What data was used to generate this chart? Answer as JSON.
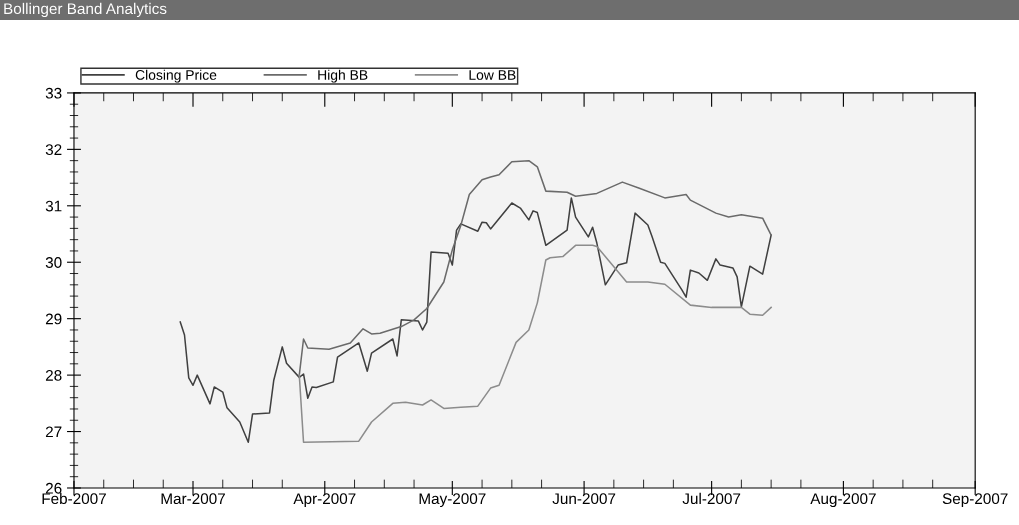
{
  "chart_data": {
    "type": "line",
    "title": "Bollinger Band Analytics",
    "xlim": [
      "2007-02-01",
      "2007-09-01"
    ],
    "xticks": [
      {
        "value": "2007-02-01",
        "label": "Feb-2007"
      },
      {
        "value": "2007-03-01",
        "label": "Mar-2007"
      },
      {
        "value": "2007-04-01",
        "label": "Apr-2007"
      },
      {
        "value": "2007-05-01",
        "label": "May-2007"
      },
      {
        "value": "2007-06-01",
        "label": "Jun-2007"
      },
      {
        "value": "2007-07-01",
        "label": "Jul-2007"
      },
      {
        "value": "2007-08-01",
        "label": "Aug-2007"
      },
      {
        "value": "2007-09-01",
        "label": "Sep-2007"
      }
    ],
    "ylim": [
      26,
      33
    ],
    "yticks": [
      26,
      27,
      28,
      29,
      30,
      31,
      32,
      33
    ],
    "grid": false,
    "legend": "top",
    "marker": "none",
    "line_style": "solid",
    "series": [
      {
        "name": "Closing Price",
        "color": "#404040",
        "x": [
          "2007-02-26",
          "2007-02-27",
          "2007-02-28",
          "2007-03-01",
          "2007-03-02",
          "2007-03-05",
          "2007-03-06",
          "2007-03-08",
          "2007-03-09",
          "2007-03-12",
          "2007-03-14",
          "2007-03-15",
          "2007-03-19",
          "2007-03-20",
          "2007-03-22",
          "2007-03-23",
          "2007-03-26",
          "2007-03-27",
          "2007-03-28",
          "2007-03-29",
          "2007-03-30",
          "2007-04-03",
          "2007-04-04",
          "2007-04-09",
          "2007-04-11",
          "2007-04-12",
          "2007-04-17",
          "2007-04-18",
          "2007-04-19",
          "2007-04-23",
          "2007-04-24",
          "2007-04-25",
          "2007-04-26",
          "2007-04-30",
          "2007-05-01",
          "2007-05-02",
          "2007-05-03",
          "2007-05-07",
          "2007-05-08",
          "2007-05-09",
          "2007-05-10",
          "2007-05-15",
          "2007-05-17",
          "2007-05-19",
          "2007-05-20",
          "2007-05-21",
          "2007-05-23",
          "2007-05-28",
          "2007-05-29",
          "2007-05-30",
          "2007-06-02",
          "2007-06-03",
          "2007-06-04",
          "2007-06-06",
          "2007-06-09",
          "2007-06-11",
          "2007-06-13",
          "2007-06-16",
          "2007-06-17",
          "2007-06-19",
          "2007-06-20",
          "2007-06-24",
          "2007-06-25",
          "2007-06-26",
          "2007-06-28",
          "2007-06-30",
          "2007-07-02",
          "2007-07-03",
          "2007-07-06",
          "2007-07-07",
          "2007-07-08",
          "2007-07-10",
          "2007-07-13",
          "2007-07-15"
        ],
        "values": [
          28.94,
          28.71,
          27.95,
          27.82,
          28.0,
          27.49,
          27.79,
          27.7,
          27.42,
          27.17,
          26.81,
          27.31,
          27.33,
          27.91,
          28.5,
          28.21,
          27.96,
          28.02,
          27.59,
          27.79,
          27.78,
          27.88,
          28.32,
          28.57,
          28.07,
          28.39,
          28.64,
          28.34,
          28.98,
          28.96,
          28.8,
          28.94,
          30.18,
          30.16,
          29.95,
          30.57,
          30.68,
          30.55,
          30.71,
          30.7,
          30.59,
          31.05,
          30.96,
          30.75,
          30.91,
          30.88,
          30.3,
          30.57,
          31.14,
          30.8,
          30.45,
          30.62,
          30.34,
          29.6,
          29.95,
          29.99,
          30.87,
          30.66,
          30.45,
          30.0,
          29.98,
          29.51,
          29.38,
          29.86,
          29.81,
          29.68,
          30.06,
          29.95,
          29.9,
          29.74,
          29.21,
          29.93,
          29.79,
          30.48
        ]
      },
      {
        "name": "High BB",
        "color": "#6a6a6a",
        "x": [
          "2007-03-26",
          "2007-03-27",
          "2007-03-28",
          "2007-04-02",
          "2007-04-07",
          "2007-04-10",
          "2007-04-12",
          "2007-04-14",
          "2007-04-19",
          "2007-04-22",
          "2007-04-25",
          "2007-04-29",
          "2007-05-01",
          "2007-05-03",
          "2007-05-05",
          "2007-05-08",
          "2007-05-10",
          "2007-05-12",
          "2007-05-15",
          "2007-05-19",
          "2007-05-21",
          "2007-05-23",
          "2007-05-28",
          "2007-05-30",
          "2007-06-04",
          "2007-06-10",
          "2007-06-14",
          "2007-06-20",
          "2007-06-25",
          "2007-06-26",
          "2007-07-02",
          "2007-07-05",
          "2007-07-08",
          "2007-07-13",
          "2007-07-15"
        ],
        "values": [
          28.0,
          28.64,
          28.48,
          28.46,
          28.57,
          28.82,
          28.73,
          28.74,
          28.86,
          28.98,
          29.18,
          29.65,
          30.22,
          30.65,
          31.2,
          31.46,
          31.51,
          31.55,
          31.78,
          31.8,
          31.69,
          31.26,
          31.24,
          31.17,
          31.22,
          31.42,
          31.31,
          31.14,
          31.2,
          31.1,
          30.87,
          30.8,
          30.84,
          30.78,
          30.48
        ]
      },
      {
        "name": "Low BB",
        "color": "#8c8c8c",
        "x": [
          "2007-03-26",
          "2007-03-27",
          "2007-04-09",
          "2007-04-12",
          "2007-04-17",
          "2007-04-20",
          "2007-04-24",
          "2007-04-26",
          "2007-04-29",
          "2007-05-03",
          "2007-05-07",
          "2007-05-10",
          "2007-05-12",
          "2007-05-16",
          "2007-05-19",
          "2007-05-21",
          "2007-05-23",
          "2007-05-24",
          "2007-05-27",
          "2007-05-30",
          "2007-06-03",
          "2007-06-04",
          "2007-06-08",
          "2007-06-11",
          "2007-06-16",
          "2007-06-20",
          "2007-06-26",
          "2007-07-01",
          "2007-07-08",
          "2007-07-10",
          "2007-07-13",
          "2007-07-15"
        ],
        "values": [
          28.0,
          26.81,
          26.83,
          27.17,
          27.5,
          27.52,
          27.47,
          27.56,
          27.41,
          27.43,
          27.45,
          27.77,
          27.82,
          28.58,
          28.8,
          29.28,
          30.04,
          30.08,
          30.1,
          30.3,
          30.3,
          30.28,
          29.92,
          29.65,
          29.65,
          29.61,
          29.24,
          29.2,
          29.2,
          29.08,
          29.06,
          29.2
        ]
      }
    ]
  }
}
